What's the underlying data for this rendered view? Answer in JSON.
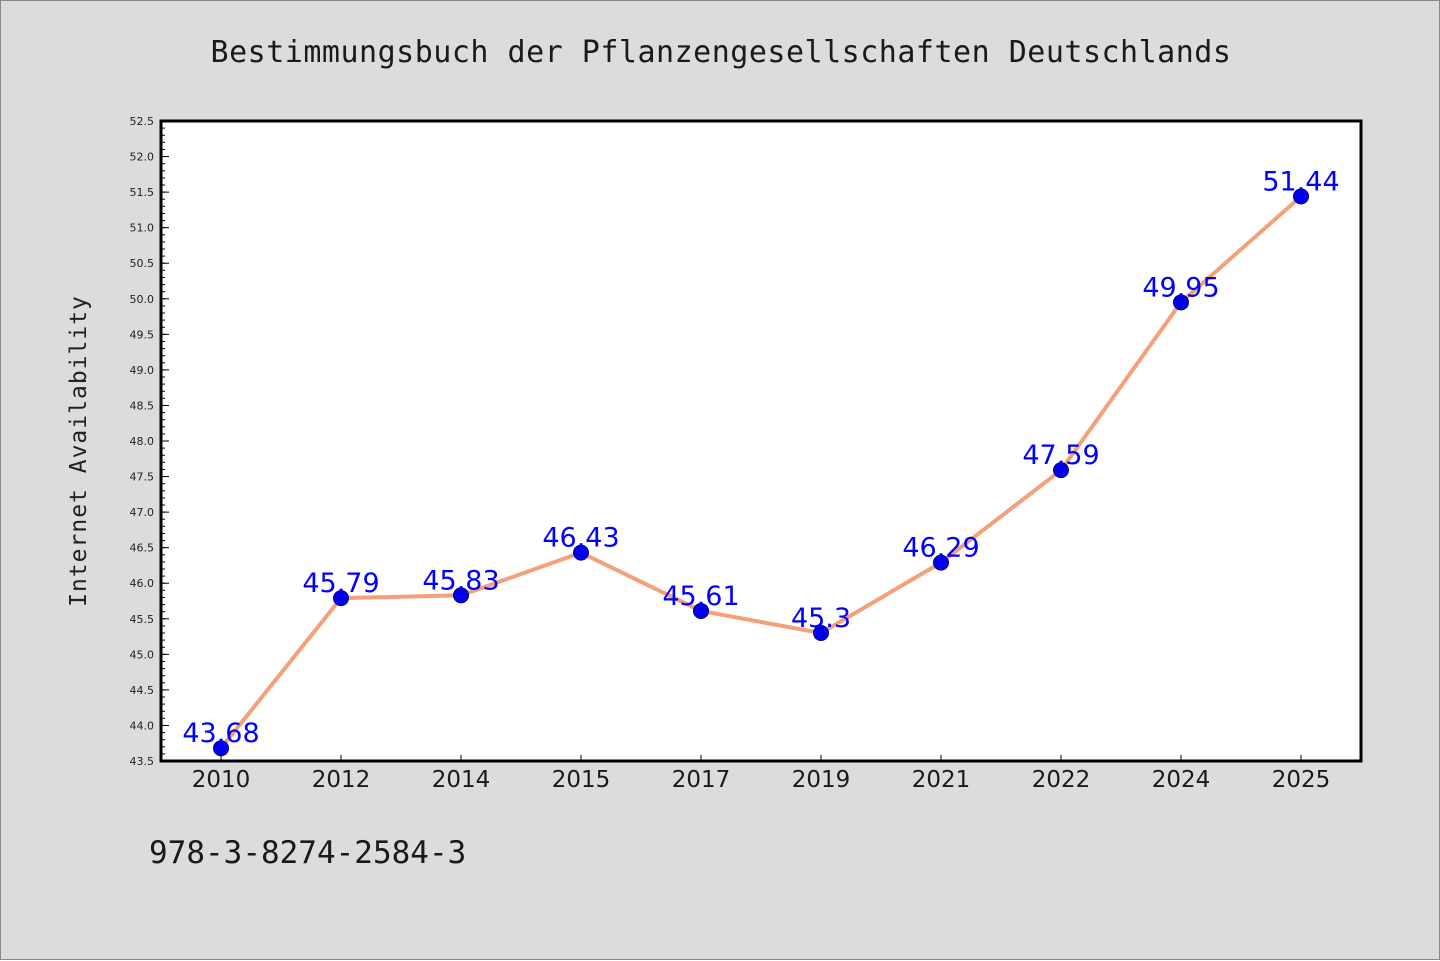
{
  "chart_data": {
    "type": "line",
    "title": "Bestimmungsbuch der Pflanzengesellschaften Deutschlands",
    "xlabel": "",
    "ylabel": "Internet Availability",
    "categories": [
      "2010",
      "2012",
      "2014",
      "2015",
      "2017",
      "2019",
      "2021",
      "2022",
      "2024",
      "2025"
    ],
    "values": [
      43.68,
      45.79,
      45.83,
      46.43,
      45.61,
      45.3,
      46.29,
      47.59,
      49.95,
      51.44
    ],
    "data_labels": [
      "43.68",
      "45.79",
      "45.83",
      "46.43",
      "45.61",
      "45.3",
      "46.29",
      "47.59",
      "49.95",
      "51.44"
    ],
    "ylim": [
      43.5,
      52.5
    ],
    "yticks": [
      "43.5",
      "44.0",
      "44.5",
      "45.0",
      "45.5",
      "46.0",
      "46.5",
      "47.0",
      "47.5",
      "48.0",
      "48.5",
      "49.0",
      "49.5",
      "50.0",
      "50.5",
      "51.0",
      "51.5",
      "52.0",
      "52.5"
    ],
    "grid": false,
    "colors": {
      "line": "#f4a07a",
      "marker": "#0000ee",
      "data_label": "#0000ff",
      "background": "#dcdcdc",
      "plot_background": "#ffffff"
    }
  },
  "footer_text": "978-3-8274-2584-3"
}
